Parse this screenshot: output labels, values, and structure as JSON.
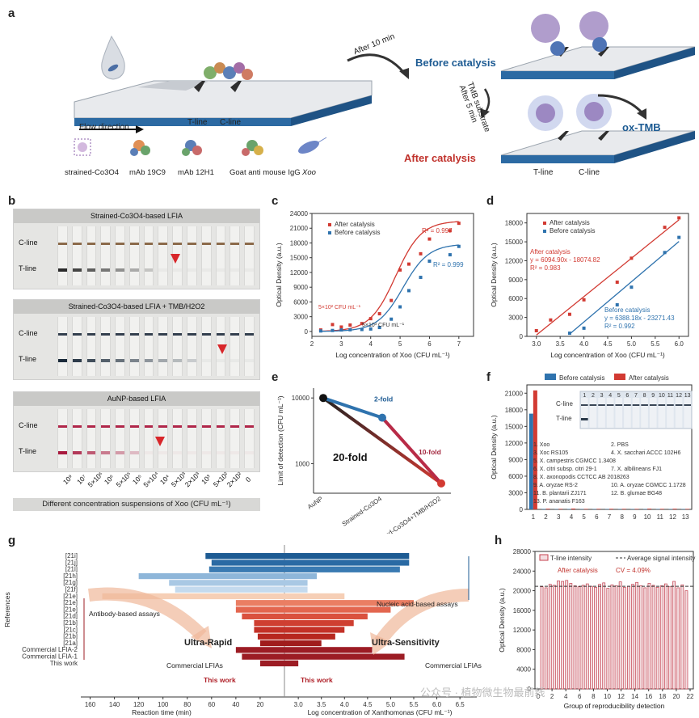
{
  "panel_labels": {
    "a": "a",
    "b": "b",
    "c": "c",
    "d": "d",
    "e": "e",
    "f": "f",
    "g": "g",
    "h": "h"
  },
  "colors": {
    "after": "#d23a32",
    "before": "#2f73ae",
    "dark_red": "#9c1c24",
    "dark_blue": "#1d5b93"
  },
  "panel_a": {
    "flow_direction": "Flow direction",
    "t_line": "T-line",
    "c_line": "C-line",
    "legend": [
      "strained-Co3O4",
      "mAb 19C9",
      "mAb 12H1",
      "Goat anti mouse IgG",
      "Xoo"
    ],
    "after_10_min": "After 10 min",
    "before_catalysis": "Before catalysis",
    "after_5_min": "After 5 min",
    "tmb_substrate": "TMB substrate",
    "ox_tmb": "ox-TMB",
    "after_catalysis": "After catalysis",
    "t_line_right": "T-line",
    "c_line_right": "C-line"
  },
  "panel_b": {
    "headers": [
      "Strained-Co3O4-based LFIA",
      "Strained-Co3O4-based LFIA + TMB/H2O2",
      "AuNP-based LFIA"
    ],
    "c_line": "C-line",
    "t_line": "T-line",
    "concentrations": [
      "10⁹",
      "10⁷",
      "5×10⁶",
      "10⁶",
      "5×10⁵",
      "10⁵",
      "5×10⁴",
      "10⁴",
      "5×10³",
      "2×10³",
      "10³",
      "5×10²",
      "2×10²",
      "0"
    ],
    "xlabel": "Different concentration suspensions of Xoo (CFU mL⁻¹)"
  },
  "chart_data": [
    {
      "panel": "c",
      "type": "scatter",
      "xlabel": "Log concentration of Xoo (CFU mL⁻¹)",
      "ylabel": "Optical Density (a.u.)",
      "xlim": [
        2,
        7.5
      ],
      "ylim": [
        -1000,
        24000
      ],
      "xticks": [
        "2",
        "3",
        "4",
        "5",
        "6",
        "7"
      ],
      "yticks": [
        "0",
        "3000",
        "6000",
        "9000",
        "12000",
        "15000",
        "18000",
        "21000",
        "24000"
      ],
      "series": [
        {
          "name": "After catalysis",
          "r2": "R² = 0.997",
          "x": [
            2.3,
            2.7,
            3.0,
            3.3,
            3.7,
            4.0,
            4.3,
            4.7,
            5.0,
            5.3,
            5.7,
            6.0,
            6.7,
            7.0
          ],
          "y": [
            300,
            1400,
            900,
            1300,
            1600,
            2600,
            3600,
            6300,
            12500,
            13700,
            15800,
            18800,
            20500,
            22000
          ]
        },
        {
          "name": "Before catalysis",
          "r2": "R² = 0.999",
          "x": [
            2.3,
            2.7,
            3.0,
            3.3,
            3.7,
            4.0,
            4.3,
            4.7,
            5.0,
            5.3,
            5.7,
            6.0,
            6.7,
            7.0
          ],
          "y": [
            100,
            200,
            300,
            350,
            400,
            500,
            800,
            2500,
            5000,
            8300,
            11000,
            14300,
            15600,
            17300
          ]
        }
      ],
      "annotations": [
        "5×10² CFU mL⁻¹",
        "5×10³ CFU mL⁻¹"
      ]
    },
    {
      "panel": "d",
      "type": "scatter",
      "xlabel": "Log concentration of Xoo (CFU mL⁻¹)",
      "ylabel": "Optical Density (a.u.)",
      "xlim": [
        2.8,
        6.2
      ],
      "ylim": [
        0,
        19500
      ],
      "xticks": [
        "3.0",
        "3.5",
        "4.0",
        "4.5",
        "5.0",
        "5.5",
        "6.0"
      ],
      "yticks": [
        "0",
        "3000",
        "6000",
        "9000",
        "12000",
        "15000",
        "18000"
      ],
      "series": [
        {
          "name": "After catalysis",
          "eq": "y = 6094.90x - 18074.82",
          "r2": "R² = 0.983",
          "x": [
            3.0,
            3.3,
            3.7,
            4.0,
            4.7,
            5.0,
            5.7,
            6.0
          ],
          "y": [
            900,
            2600,
            3500,
            5800,
            8600,
            12400,
            17300,
            18800
          ]
        },
        {
          "name": "Before catalysis",
          "eq": "y = 6388.18x - 23271.43",
          "r2": "R² = 0.992",
          "x": [
            3.7,
            4.0,
            4.7,
            5.0,
            5.7,
            6.0
          ],
          "y": [
            500,
            1300,
            5000,
            7800,
            13300,
            15700
          ]
        }
      ],
      "titles": [
        "After catalysis",
        "Before catalysis"
      ]
    },
    {
      "panel": "e",
      "type": "line",
      "ylabel": "Limit of detection (CFU mL⁻¹)",
      "yscale": "log",
      "yticks": [
        "1000",
        "10000"
      ],
      "categories": [
        "AuNP",
        "Strained-Co3O4",
        "Strained-Co3O4+TMB/H2O2"
      ],
      "values": [
        10000,
        5000,
        500
      ],
      "annotations": [
        "2-fold",
        "10-fold",
        "20-fold"
      ]
    },
    {
      "panel": "f",
      "type": "bar",
      "ylabel": "Optical Density (a.u.)",
      "ylim": [
        0,
        21000
      ],
      "yticks": [
        "0",
        "3000",
        "6000",
        "9000",
        "12000",
        "15000",
        "18000",
        "21000"
      ],
      "categories": [
        "1",
        "2",
        "3",
        "4",
        "5",
        "6",
        "7",
        "8",
        "9",
        "10",
        "11",
        "12",
        "13"
      ],
      "series": [
        {
          "name": "Before catalysis",
          "values": [
            17300,
            80,
            60,
            70,
            60,
            60,
            60,
            60,
            60,
            60,
            60,
            60,
            60
          ]
        },
        {
          "name": "After catalysis",
          "values": [
            21500,
            120,
            100,
            150,
            90,
            100,
            110,
            100,
            90,
            130,
            100,
            120,
            90
          ]
        }
      ],
      "inset_labels": {
        "c_line": "C-line",
        "t_line": "T-line",
        "lanes": [
          "1",
          "2",
          "3",
          "4",
          "5",
          "6",
          "7",
          "8",
          "9",
          "10",
          "11",
          "12",
          "13"
        ]
      },
      "key": [
        "1. Xoo",
        "2. PBS",
        "3. Xoc RS105",
        "4. X. sacchari ACCC 102H6",
        "5. X. campestris CGMCC 1.3408",
        "6. X. citri subsp. citri 29-1",
        "7. X. albilineans FJ1",
        "8. X. axonopodis CCTCC AB 2018263",
        "9. A. oryzae RS-2",
        "10. A. oryzae CGMCC 1.1728",
        "11. B. plantarii ZJ171",
        "12. B. glumae BG48",
        "13. P. ananatis F163"
      ]
    },
    {
      "panel": "g",
      "type": "bar",
      "ylabel": "References",
      "categories": [
        "[21i]",
        "[21j]",
        "[21l]",
        "[21h]",
        "[21g]",
        "[21f]",
        "[21e]",
        "[21e]",
        "[21e]",
        "[21d]",
        "[21b]",
        "[21c]",
        "[21b]",
        "[21a]",
        "Commercial LFIA-2",
        "Commercial LFIA-1",
        "This work"
      ],
      "reaction_time_min": [
        65,
        60,
        62,
        120,
        95,
        90,
        150,
        40,
        40,
        35,
        25,
        25,
        22,
        20,
        40,
        35,
        20
      ],
      "log_concentration": [
        5.4,
        5.4,
        5.2,
        3.4,
        3.2,
        3.2,
        4.0,
        5.5,
        5.0,
        4.5,
        4.2,
        4.0,
        3.8,
        3.5,
        4.6,
        5.3,
        3.0
      ],
      "left_xlabel": "Reaction time (min)",
      "right_xlabel": "Log concentration of Xanthomonas (CFU mL⁻¹)",
      "left_xticks": [
        "160",
        "140",
        "120",
        "100",
        "80",
        "60",
        "40",
        "20"
      ],
      "right_xticks": [
        "3.0",
        "3.5",
        "4.0",
        "4.5",
        "5.0",
        "5.5",
        "6.0",
        "6.5"
      ],
      "annotations": [
        "Nucleic acid-based assays",
        "Antibody-based assays",
        "Ultra-Rapid",
        "Ultra-Sensitivity",
        "Commercial LFIAs",
        "Commercial LFIAs",
        "This work",
        "This work"
      ]
    },
    {
      "panel": "h",
      "type": "bar",
      "xlabel": "Group of reproducibility detection",
      "ylabel": "Optical Density (a.u.)",
      "ylim": [
        0,
        28000
      ],
      "yticks": [
        "0",
        "4000",
        "8000",
        "12000",
        "16000",
        "20000",
        "24000",
        "28000"
      ],
      "xticks": [
        "0",
        "2",
        "4",
        "6",
        "8",
        "10",
        "12",
        "14",
        "16",
        "18",
        "20",
        "22"
      ],
      "values": [
        20800,
        20600,
        21300,
        21100,
        22000,
        21900,
        22100,
        21500,
        21000,
        20800,
        21100,
        21400,
        20900,
        20700,
        21300,
        21600,
        20500,
        21200,
        21000,
        21800,
        20700,
        20900,
        21300,
        21700,
        21000,
        20600,
        21500,
        21100,
        20700,
        21000,
        21400,
        20800,
        21900,
        20600,
        21200,
        20000
      ],
      "average": 20900,
      "legend": [
        "T-line intensity",
        "Average signal intensity"
      ],
      "annotation": "After catalysis",
      "cv": "CV = 4.09%"
    }
  ],
  "watermark": "公众号 · 植物微生物最前线"
}
